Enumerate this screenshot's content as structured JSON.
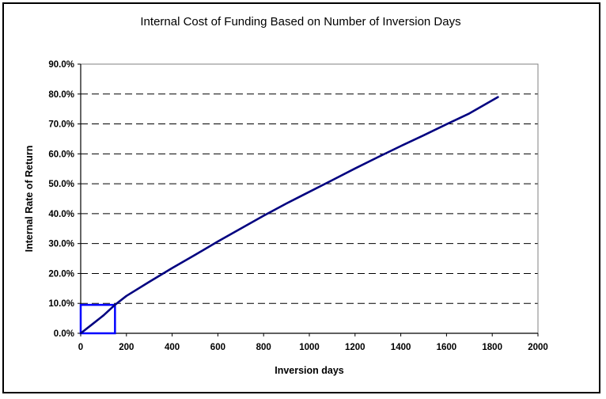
{
  "chart_data": {
    "type": "line",
    "title": "Internal Cost of Funding Based on Number of Inversion Days",
    "xlabel": "Inversion days",
    "ylabel": "Internal Rate of Return",
    "xlim": [
      0,
      2000
    ],
    "ylim": [
      0,
      0.9
    ],
    "x_ticks": [
      "0",
      "200",
      "400",
      "600",
      "800",
      "1000",
      "1200",
      "1400",
      "1600",
      "1800",
      "2000"
    ],
    "y_ticks": [
      "0.0%",
      "10.0%",
      "20.0%",
      "30.0%",
      "40.0%",
      "50.0%",
      "60.0%",
      "70.0%",
      "80.0%",
      "90.0%"
    ],
    "grid": "horizontal dashed",
    "series": [
      {
        "color": "#000080",
        "x": [
          0,
          50,
          100,
          150,
          200,
          300,
          400,
          500,
          600,
          700,
          800,
          900,
          1000,
          1100,
          1200,
          1300,
          1400,
          1500,
          1600,
          1700,
          1825
        ],
        "y": [
          0.0,
          0.03,
          0.06,
          0.095,
          0.125,
          0.172,
          0.218,
          0.262,
          0.307,
          0.35,
          0.393,
          0.434,
          0.473,
          0.512,
          0.551,
          0.589,
          0.626,
          0.662,
          0.699,
          0.735,
          0.79
        ]
      }
    ],
    "highlight_box": {
      "x": [
        0,
        150
      ],
      "y": [
        0,
        0.095
      ],
      "color": "#0000ff"
    }
  }
}
